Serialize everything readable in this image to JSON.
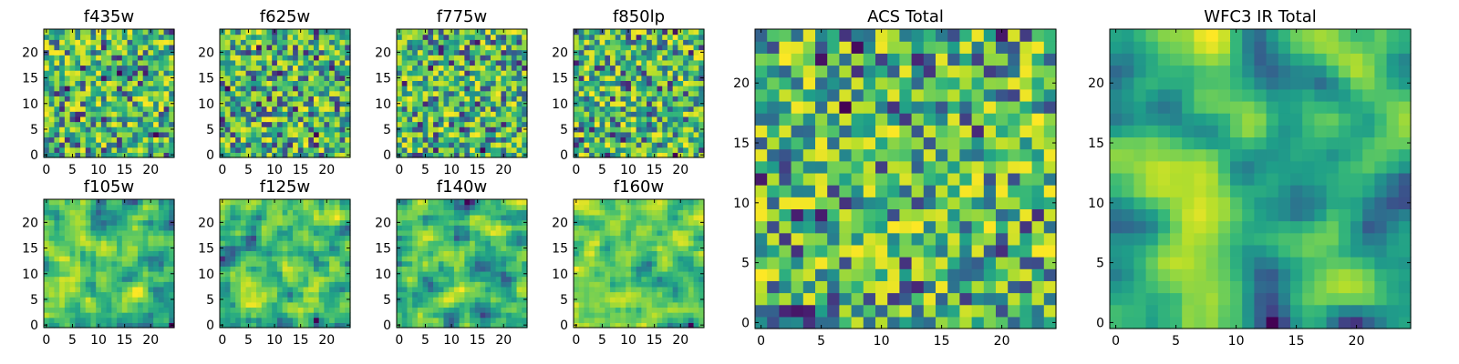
{
  "chart_data": [
    {
      "type": "heatmap",
      "title": "f435w",
      "colormap": "viridis",
      "grid_shape": [
        25,
        25
      ],
      "xlim": [
        0,
        24
      ],
      "ylim": [
        0,
        24
      ],
      "xticks": [
        0,
        5,
        10,
        15,
        20
      ],
      "yticks": [
        0,
        5,
        10,
        15,
        20
      ],
      "seed": 11,
      "smooth": 0
    },
    {
      "type": "heatmap",
      "title": "f625w",
      "colormap": "viridis",
      "grid_shape": [
        25,
        25
      ],
      "xlim": [
        0,
        24
      ],
      "ylim": [
        0,
        24
      ],
      "xticks": [
        0,
        5,
        10,
        15,
        20
      ],
      "yticks": [
        0,
        5,
        10,
        15,
        20
      ],
      "seed": 23,
      "smooth": 0
    },
    {
      "type": "heatmap",
      "title": "f775w",
      "colormap": "viridis",
      "grid_shape": [
        25,
        25
      ],
      "xlim": [
        0,
        24
      ],
      "ylim": [
        0,
        24
      ],
      "xticks": [
        0,
        5,
        10,
        15,
        20
      ],
      "yticks": [
        0,
        5,
        10,
        15,
        20
      ],
      "seed": 37,
      "smooth": 0
    },
    {
      "type": "heatmap",
      "title": "f850lp",
      "colormap": "viridis",
      "grid_shape": [
        25,
        25
      ],
      "xlim": [
        0,
        24
      ],
      "ylim": [
        0,
        24
      ],
      "xticks": [
        0,
        5,
        10,
        15,
        20
      ],
      "yticks": [
        0,
        5,
        10,
        15,
        20
      ],
      "seed": 41,
      "smooth": 0
    },
    {
      "type": "heatmap",
      "title": "f105w",
      "colormap": "viridis",
      "grid_shape": [
        25,
        25
      ],
      "xlim": [
        0,
        24
      ],
      "ylim": [
        0,
        24
      ],
      "xticks": [
        0,
        5,
        10,
        15,
        20
      ],
      "yticks": [
        0,
        5,
        10,
        15,
        20
      ],
      "seed": 53,
      "smooth": 1
    },
    {
      "type": "heatmap",
      "title": "f125w",
      "colormap": "viridis",
      "grid_shape": [
        25,
        25
      ],
      "xlim": [
        0,
        24
      ],
      "ylim": [
        0,
        24
      ],
      "xticks": [
        0,
        5,
        10,
        15,
        20
      ],
      "yticks": [
        0,
        5,
        10,
        15,
        20
      ],
      "seed": 67,
      "smooth": 1
    },
    {
      "type": "heatmap",
      "title": "f140w",
      "colormap": "viridis",
      "grid_shape": [
        25,
        25
      ],
      "xlim": [
        0,
        24
      ],
      "ylim": [
        0,
        24
      ],
      "xticks": [
        0,
        5,
        10,
        15,
        20
      ],
      "yticks": [
        0,
        5,
        10,
        15,
        20
      ],
      "seed": 71,
      "smooth": 1
    },
    {
      "type": "heatmap",
      "title": "f160w",
      "colormap": "viridis",
      "grid_shape": [
        25,
        25
      ],
      "xlim": [
        0,
        24
      ],
      "ylim": [
        0,
        24
      ],
      "xticks": [
        0,
        5,
        10,
        15,
        20
      ],
      "yticks": [
        0,
        5,
        10,
        15,
        20
      ],
      "seed": 83,
      "smooth": 1
    },
    {
      "type": "heatmap",
      "title": "ACS Total",
      "colormap": "viridis",
      "grid_shape": [
        25,
        25
      ],
      "xlim": [
        0,
        24
      ],
      "ylim": [
        0,
        24
      ],
      "xticks": [
        0,
        5,
        10,
        15,
        20
      ],
      "yticks": [
        0,
        5,
        10,
        15,
        20
      ],
      "seed": 97,
      "smooth": 0
    },
    {
      "type": "heatmap",
      "title": "WFC3 IR Total",
      "colormap": "viridis",
      "grid_shape": [
        25,
        25
      ],
      "xlim": [
        0,
        24
      ],
      "ylim": [
        0,
        24
      ],
      "xticks": [
        0,
        5,
        10,
        15,
        20
      ],
      "yticks": [
        0,
        5,
        10,
        15,
        20
      ],
      "seed": 101,
      "smooth": 2
    }
  ]
}
